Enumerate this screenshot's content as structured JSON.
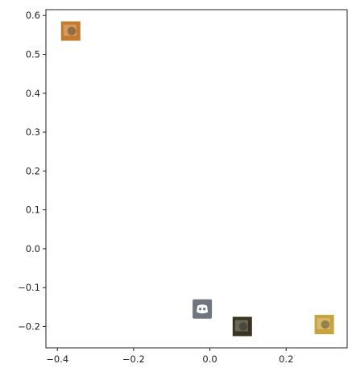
{
  "chart_data": {
    "type": "scatter",
    "title": "",
    "xlabel": "",
    "ylabel": "",
    "xlim": [
      -0.43,
      0.36
    ],
    "ylim": [
      -0.255,
      0.615
    ],
    "xticks": [
      -0.4,
      -0.2,
      0.0,
      0.2
    ],
    "xtick_labels": [
      "−0.4",
      "−0.2",
      "0.0",
      "0.2"
    ],
    "yticks": [
      -0.2,
      -0.1,
      0.0,
      0.1,
      0.2,
      0.3,
      0.4,
      0.5,
      0.6
    ],
    "ytick_labels": [
      "−0.2",
      "−0.1",
      "0.0",
      "0.1",
      "0.2",
      "0.3",
      "0.4",
      "0.5",
      "0.6"
    ],
    "grid": false,
    "points": [
      {
        "x": -0.365,
        "y": 0.56,
        "marker": "image-thumbnail-icon",
        "color": "#c47a2c"
      },
      {
        "x": -0.02,
        "y": -0.155,
        "marker": "discord-logo-icon",
        "color": "#6f7680"
      },
      {
        "x": 0.085,
        "y": -0.2,
        "marker": "image-thumbnail-icon",
        "color": "#3a3322"
      },
      {
        "x": 0.3,
        "y": -0.195,
        "marker": "image-thumbnail-icon",
        "color": "#c9a23b"
      }
    ]
  }
}
